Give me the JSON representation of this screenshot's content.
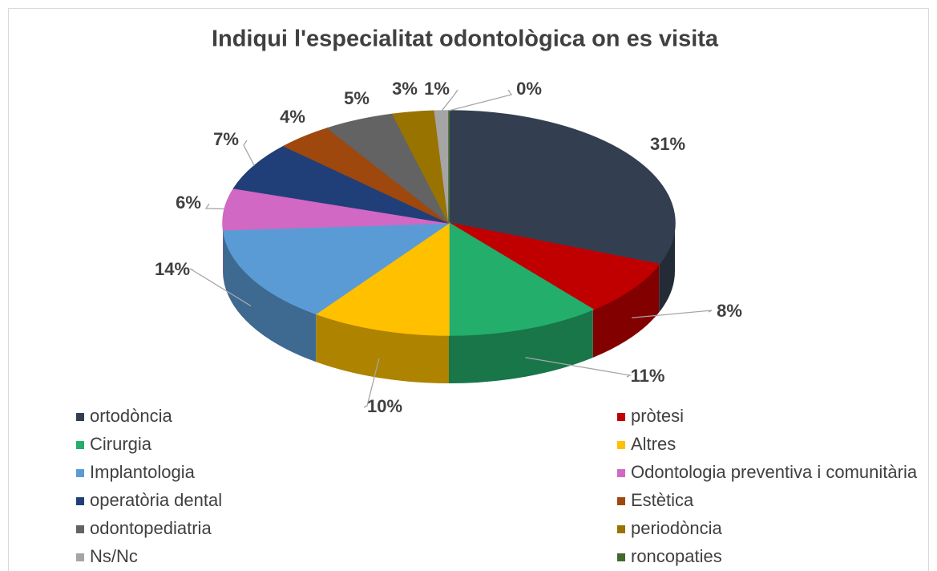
{
  "chart_data": {
    "type": "pie3d",
    "title": "Indiqui l'especialitat odontològica on es visita",
    "categories": [
      "ortodòncia",
      "pròtesi",
      "Cirurgia",
      "Altres",
      "Implantologia",
      "Odontologia preventiva i comunitària",
      "operatòria dental",
      "Estètica",
      "odontopediatria",
      "periodòncia",
      "Ns/Nc",
      "roncopaties"
    ],
    "values": [
      31,
      8,
      11,
      10,
      14,
      6,
      7,
      4,
      5,
      3,
      1,
      0
    ],
    "value_labels": [
      "31%",
      "8%",
      "11%",
      "10%",
      "14%",
      "6%",
      "7%",
      "4%",
      "5%",
      "3%",
      "1%",
      "0%"
    ],
    "colors": [
      "#333f50",
      "#c00000",
      "#23ae6c",
      "#ffc000",
      "#5b9bd5",
      "#d068c4",
      "#203f78",
      "#9e480e",
      "#636363",
      "#997300",
      "#a5a5a5",
      "#43682b"
    ],
    "legend": "bottom"
  }
}
